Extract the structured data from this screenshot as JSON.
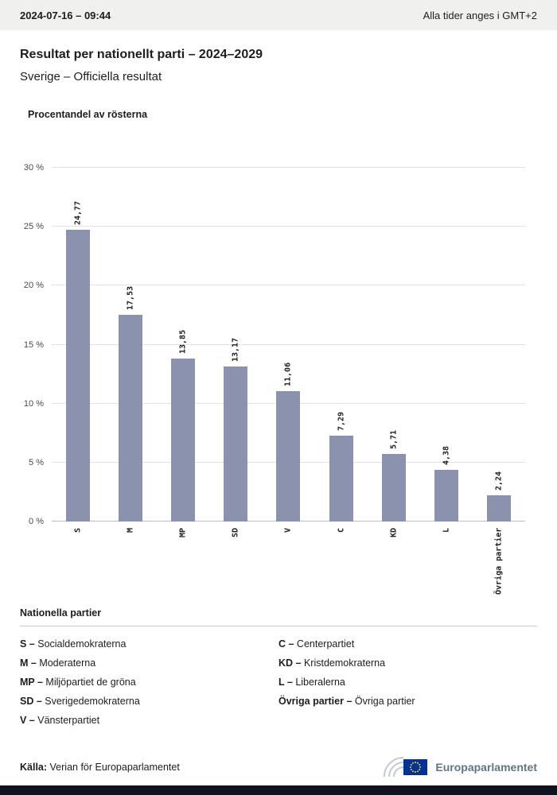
{
  "topbar": {
    "datetime": "2024-07-16 – 09:44",
    "timezone_note": "Alla tider anges i GMT+2"
  },
  "header": {
    "title": "Resultat per nationellt parti – 2024–2029",
    "subtitle": "Sverige – Officiella resultat"
  },
  "chart_data": {
    "type": "bar",
    "title": "Procentandel av rösterna",
    "categories": [
      "S",
      "M",
      "MP",
      "SD",
      "V",
      "C",
      "KD",
      "L",
      "Övriga partier"
    ],
    "values": [
      24.77,
      17.53,
      13.85,
      13.17,
      11.06,
      7.29,
      5.71,
      4.38,
      2.24
    ],
    "value_labels": [
      "24,77",
      "17,53",
      "13,85",
      "13,17",
      "11,06",
      "7,29",
      "5,71",
      "4,38",
      "2,24"
    ],
    "ylim": [
      0,
      30
    ],
    "yticks": [
      {
        "v": 0,
        "label": "0 %"
      },
      {
        "v": 5,
        "label": "5 %"
      },
      {
        "v": 10,
        "label": "10 %"
      },
      {
        "v": 15,
        "label": "15 %"
      },
      {
        "v": 20,
        "label": "20 %"
      },
      {
        "v": 25,
        "label": "25 %"
      },
      {
        "v": 30,
        "label": "30 %"
      }
    ],
    "grid": true,
    "legend_position": "none",
    "bar_color": "#8A92AE"
  },
  "legend": {
    "title": "Nationella partier",
    "columns": [
      [
        {
          "abbr": "S",
          "name": "Socialdemokraterna"
        },
        {
          "abbr": "M",
          "name": "Moderaterna"
        },
        {
          "abbr": "MP",
          "name": "Miljöpartiet de gröna"
        },
        {
          "abbr": "SD",
          "name": "Sverigedemokraterna"
        },
        {
          "abbr": "V",
          "name": "Vänsterpartiet"
        }
      ],
      [
        {
          "abbr": "C",
          "name": "Centerpartiet"
        },
        {
          "abbr": "KD",
          "name": "Kristdemokraterna"
        },
        {
          "abbr": "L",
          "name": "Liberalerna"
        },
        {
          "abbr": "Övriga partier",
          "name": "Övriga partier"
        }
      ]
    ]
  },
  "footer": {
    "source_label": "Källa:",
    "source_text": "Verian för Europaparlamentet",
    "logo_text": "Europaparlamentet"
  },
  "colors": {
    "bar": "#8A92AE",
    "topbar_bg": "#f0f0ee",
    "bottombar_bg": "#10131f",
    "eu_blue": "#003399",
    "eu_star": "#FFCC00"
  }
}
